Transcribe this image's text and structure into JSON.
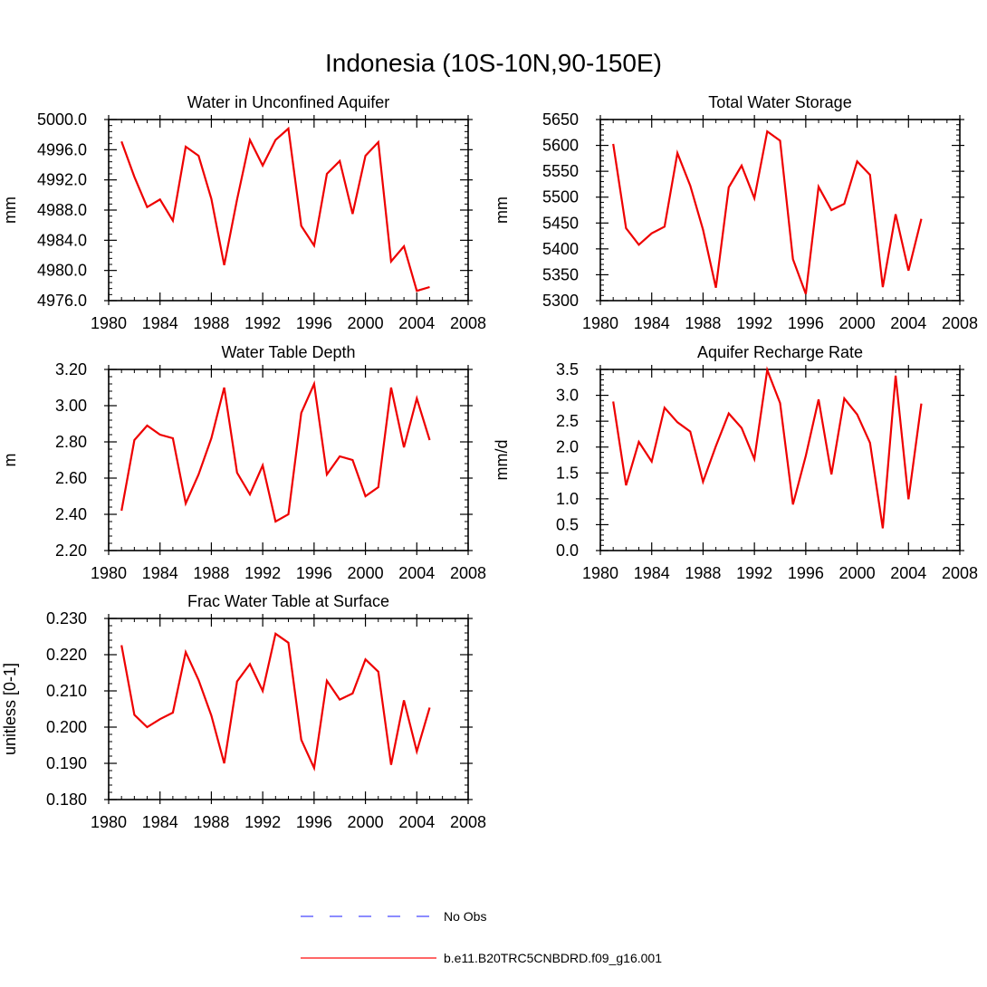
{
  "figure": {
    "title": "Indonesia (10S-10N,90-150E)"
  },
  "legend": {
    "placement": "bottom-center",
    "items": [
      {
        "label": "No Obs",
        "color": "#6666ff",
        "style": "dashed"
      },
      {
        "label": "b.e11.B20TRC5CNBDRD.f09_g16.001",
        "color": "#ff3333",
        "style": "solid"
      }
    ]
  },
  "chart_data": [
    {
      "type": "line",
      "title": "Water in Unconfined Aquifer",
      "xlabel": "",
      "ylabel": "mm",
      "xlim": [
        1980,
        2008
      ],
      "ylim": [
        4976.0,
        5000.0
      ],
      "xticks": [
        "1980",
        "1984",
        "1988",
        "1992",
        "1996",
        "2000",
        "2004",
        "2008"
      ],
      "xtick_values": [
        1980,
        1984,
        1988,
        1992,
        1996,
        2000,
        2004,
        2008
      ],
      "yticks": [
        "4976.0",
        "4980.0",
        "4984.0",
        "4988.0",
        "4992.0",
        "4996.0",
        "5000.0"
      ],
      "ytick_values": [
        4976,
        4980,
        4984,
        4988,
        4992,
        4996,
        5000
      ],
      "series": [
        {
          "name": "b.e11.B20TRC5CNBDRD.f09_g16.001",
          "color": "#ee0000",
          "x": [
            1981,
            1982,
            1983,
            1984,
            1985,
            1986,
            1987,
            1988,
            1989,
            1990,
            1991,
            1992,
            1993,
            1994,
            1995,
            1996,
            1997,
            1998,
            1999,
            2000,
            2001,
            2002,
            2003,
            2004,
            2005
          ],
          "values": [
            4997.1,
            4992.4,
            4988.4,
            4989.4,
            4986.6,
            4996.4,
            4995.2,
            4989.5,
            4980.7,
            4989.4,
            4997.3,
            4993.9,
            4997.3,
            4998.8,
            4985.9,
            4983.3,
            4992.8,
            4994.5,
            4987.5,
            4995.2,
            4997.0,
            4981.2,
            4983.2,
            4977.3,
            4977.8
          ]
        }
      ]
    },
    {
      "type": "line",
      "title": "Total Water Storage",
      "xlabel": "",
      "ylabel": "mm",
      "xlim": [
        1980,
        2008
      ],
      "ylim": [
        5300,
        5650
      ],
      "xticks": [
        "1980",
        "1984",
        "1988",
        "1992",
        "1996",
        "2000",
        "2004",
        "2008"
      ],
      "xtick_values": [
        1980,
        1984,
        1988,
        1992,
        1996,
        2000,
        2004,
        2008
      ],
      "yticks": [
        "5300",
        "5350",
        "5400",
        "5450",
        "5500",
        "5550",
        "5600",
        "5650"
      ],
      "ytick_values": [
        5300,
        5350,
        5400,
        5450,
        5500,
        5550,
        5600,
        5650
      ],
      "series": [
        {
          "name": "b.e11.B20TRC5CNBDRD.f09_g16.001",
          "color": "#ee0000",
          "x": [
            1981,
            1982,
            1983,
            1984,
            1985,
            1986,
            1987,
            1988,
            1989,
            1990,
            1991,
            1992,
            1993,
            1994,
            1995,
            1996,
            1997,
            1998,
            1999,
            2000,
            2001,
            2002,
            2003,
            2004,
            2005
          ],
          "values": [
            5603,
            5440,
            5408,
            5430,
            5443,
            5585,
            5522,
            5437,
            5325,
            5519,
            5561,
            5498,
            5627,
            5609,
            5380,
            5313,
            5520,
            5475,
            5487,
            5569,
            5543,
            5326,
            5467,
            5358,
            5458
          ]
        }
      ]
    },
    {
      "type": "line",
      "title": "Water Table Depth",
      "xlabel": "",
      "ylabel": "m",
      "xlim": [
        1980,
        2008
      ],
      "ylim": [
        2.2,
        3.2
      ],
      "xticks": [
        "1980",
        "1984",
        "1988",
        "1992",
        "1996",
        "2000",
        "2004",
        "2008"
      ],
      "xtick_values": [
        1980,
        1984,
        1988,
        1992,
        1996,
        2000,
        2004,
        2008
      ],
      "yticks": [
        "2.20",
        "2.40",
        "2.60",
        "2.80",
        "3.00",
        "3.20"
      ],
      "ytick_values": [
        2.2,
        2.4,
        2.6,
        2.8,
        3.0,
        3.2
      ],
      "series": [
        {
          "name": "b.e11.B20TRC5CNBDRD.f09_g16.001",
          "color": "#ee0000",
          "x": [
            1981,
            1982,
            1983,
            1984,
            1985,
            1986,
            1987,
            1988,
            1989,
            1990,
            1991,
            1992,
            1993,
            1994,
            1995,
            1996,
            1997,
            1998,
            1999,
            2000,
            2001,
            2002,
            2003,
            2004,
            2005
          ],
          "values": [
            2.42,
            2.81,
            2.89,
            2.84,
            2.82,
            2.46,
            2.62,
            2.82,
            3.1,
            2.63,
            2.51,
            2.67,
            2.36,
            2.4,
            2.96,
            3.12,
            2.62,
            2.72,
            2.7,
            2.5,
            2.55,
            3.1,
            2.77,
            3.04,
            2.81
          ]
        }
      ]
    },
    {
      "type": "line",
      "title": "Aquifer Recharge Rate",
      "xlabel": "",
      "ylabel": "mm/d",
      "xlim": [
        1980,
        2008
      ],
      "ylim": [
        0.0,
        3.5
      ],
      "xticks": [
        "1980",
        "1984",
        "1988",
        "1992",
        "1996",
        "2000",
        "2004",
        "2008"
      ],
      "xtick_values": [
        1980,
        1984,
        1988,
        1992,
        1996,
        2000,
        2004,
        2008
      ],
      "yticks": [
        "0.0",
        "0.5",
        "1.0",
        "1.5",
        "2.0",
        "2.5",
        "3.0",
        "3.5"
      ],
      "ytick_values": [
        0,
        0.5,
        1,
        1.5,
        2,
        2.5,
        3,
        3.5
      ],
      "series": [
        {
          "name": "b.e11.B20TRC5CNBDRD.f09_g16.001",
          "color": "#ee0000",
          "x": [
            1981,
            1982,
            1983,
            1984,
            1985,
            1986,
            1987,
            1988,
            1989,
            1990,
            1991,
            1992,
            1993,
            1994,
            1995,
            1996,
            1997,
            1998,
            1999,
            2000,
            2001,
            2002,
            2003,
            2004,
            2005
          ],
          "values": [
            2.88,
            1.26,
            2.1,
            1.72,
            2.76,
            2.48,
            2.3,
            1.33,
            2.02,
            2.65,
            2.37,
            1.77,
            3.49,
            2.85,
            0.89,
            1.83,
            2.92,
            1.47,
            2.94,
            2.63,
            2.08,
            0.43,
            3.38,
            0.99,
            2.84
          ]
        }
      ]
    },
    {
      "type": "line",
      "title": "Frac Water Table at Surface",
      "xlabel": "",
      "ylabel": "unitless [0-1]",
      "xlim": [
        1980,
        2008
      ],
      "ylim": [
        0.18,
        0.23
      ],
      "xticks": [
        "1980",
        "1984",
        "1988",
        "1992",
        "1996",
        "2000",
        "2004",
        "2008"
      ],
      "xtick_values": [
        1980,
        1984,
        1988,
        1992,
        1996,
        2000,
        2004,
        2008
      ],
      "yticks": [
        "0.180",
        "0.190",
        "0.200",
        "0.210",
        "0.220",
        "0.230"
      ],
      "ytick_values": [
        0.18,
        0.19,
        0.2,
        0.21,
        0.22,
        0.23
      ],
      "series": [
        {
          "name": "b.e11.B20TRC5CNBDRD.f09_g16.001",
          "color": "#ee0000",
          "x": [
            1981,
            1982,
            1983,
            1984,
            1985,
            1986,
            1987,
            1988,
            1989,
            1990,
            1991,
            1992,
            1993,
            1994,
            1995,
            1996,
            1997,
            1998,
            1999,
            2000,
            2001,
            2002,
            2003,
            2004,
            2005
          ],
          "values": [
            0.2226,
            0.2034,
            0.2,
            0.2022,
            0.204,
            0.2207,
            0.213,
            0.2032,
            0.19,
            0.2126,
            0.2174,
            0.21,
            0.2258,
            0.2233,
            0.1965,
            0.1887,
            0.2128,
            0.2076,
            0.2093,
            0.2187,
            0.2153,
            0.1896,
            0.2074,
            0.1933,
            0.2054
          ]
        }
      ]
    }
  ]
}
